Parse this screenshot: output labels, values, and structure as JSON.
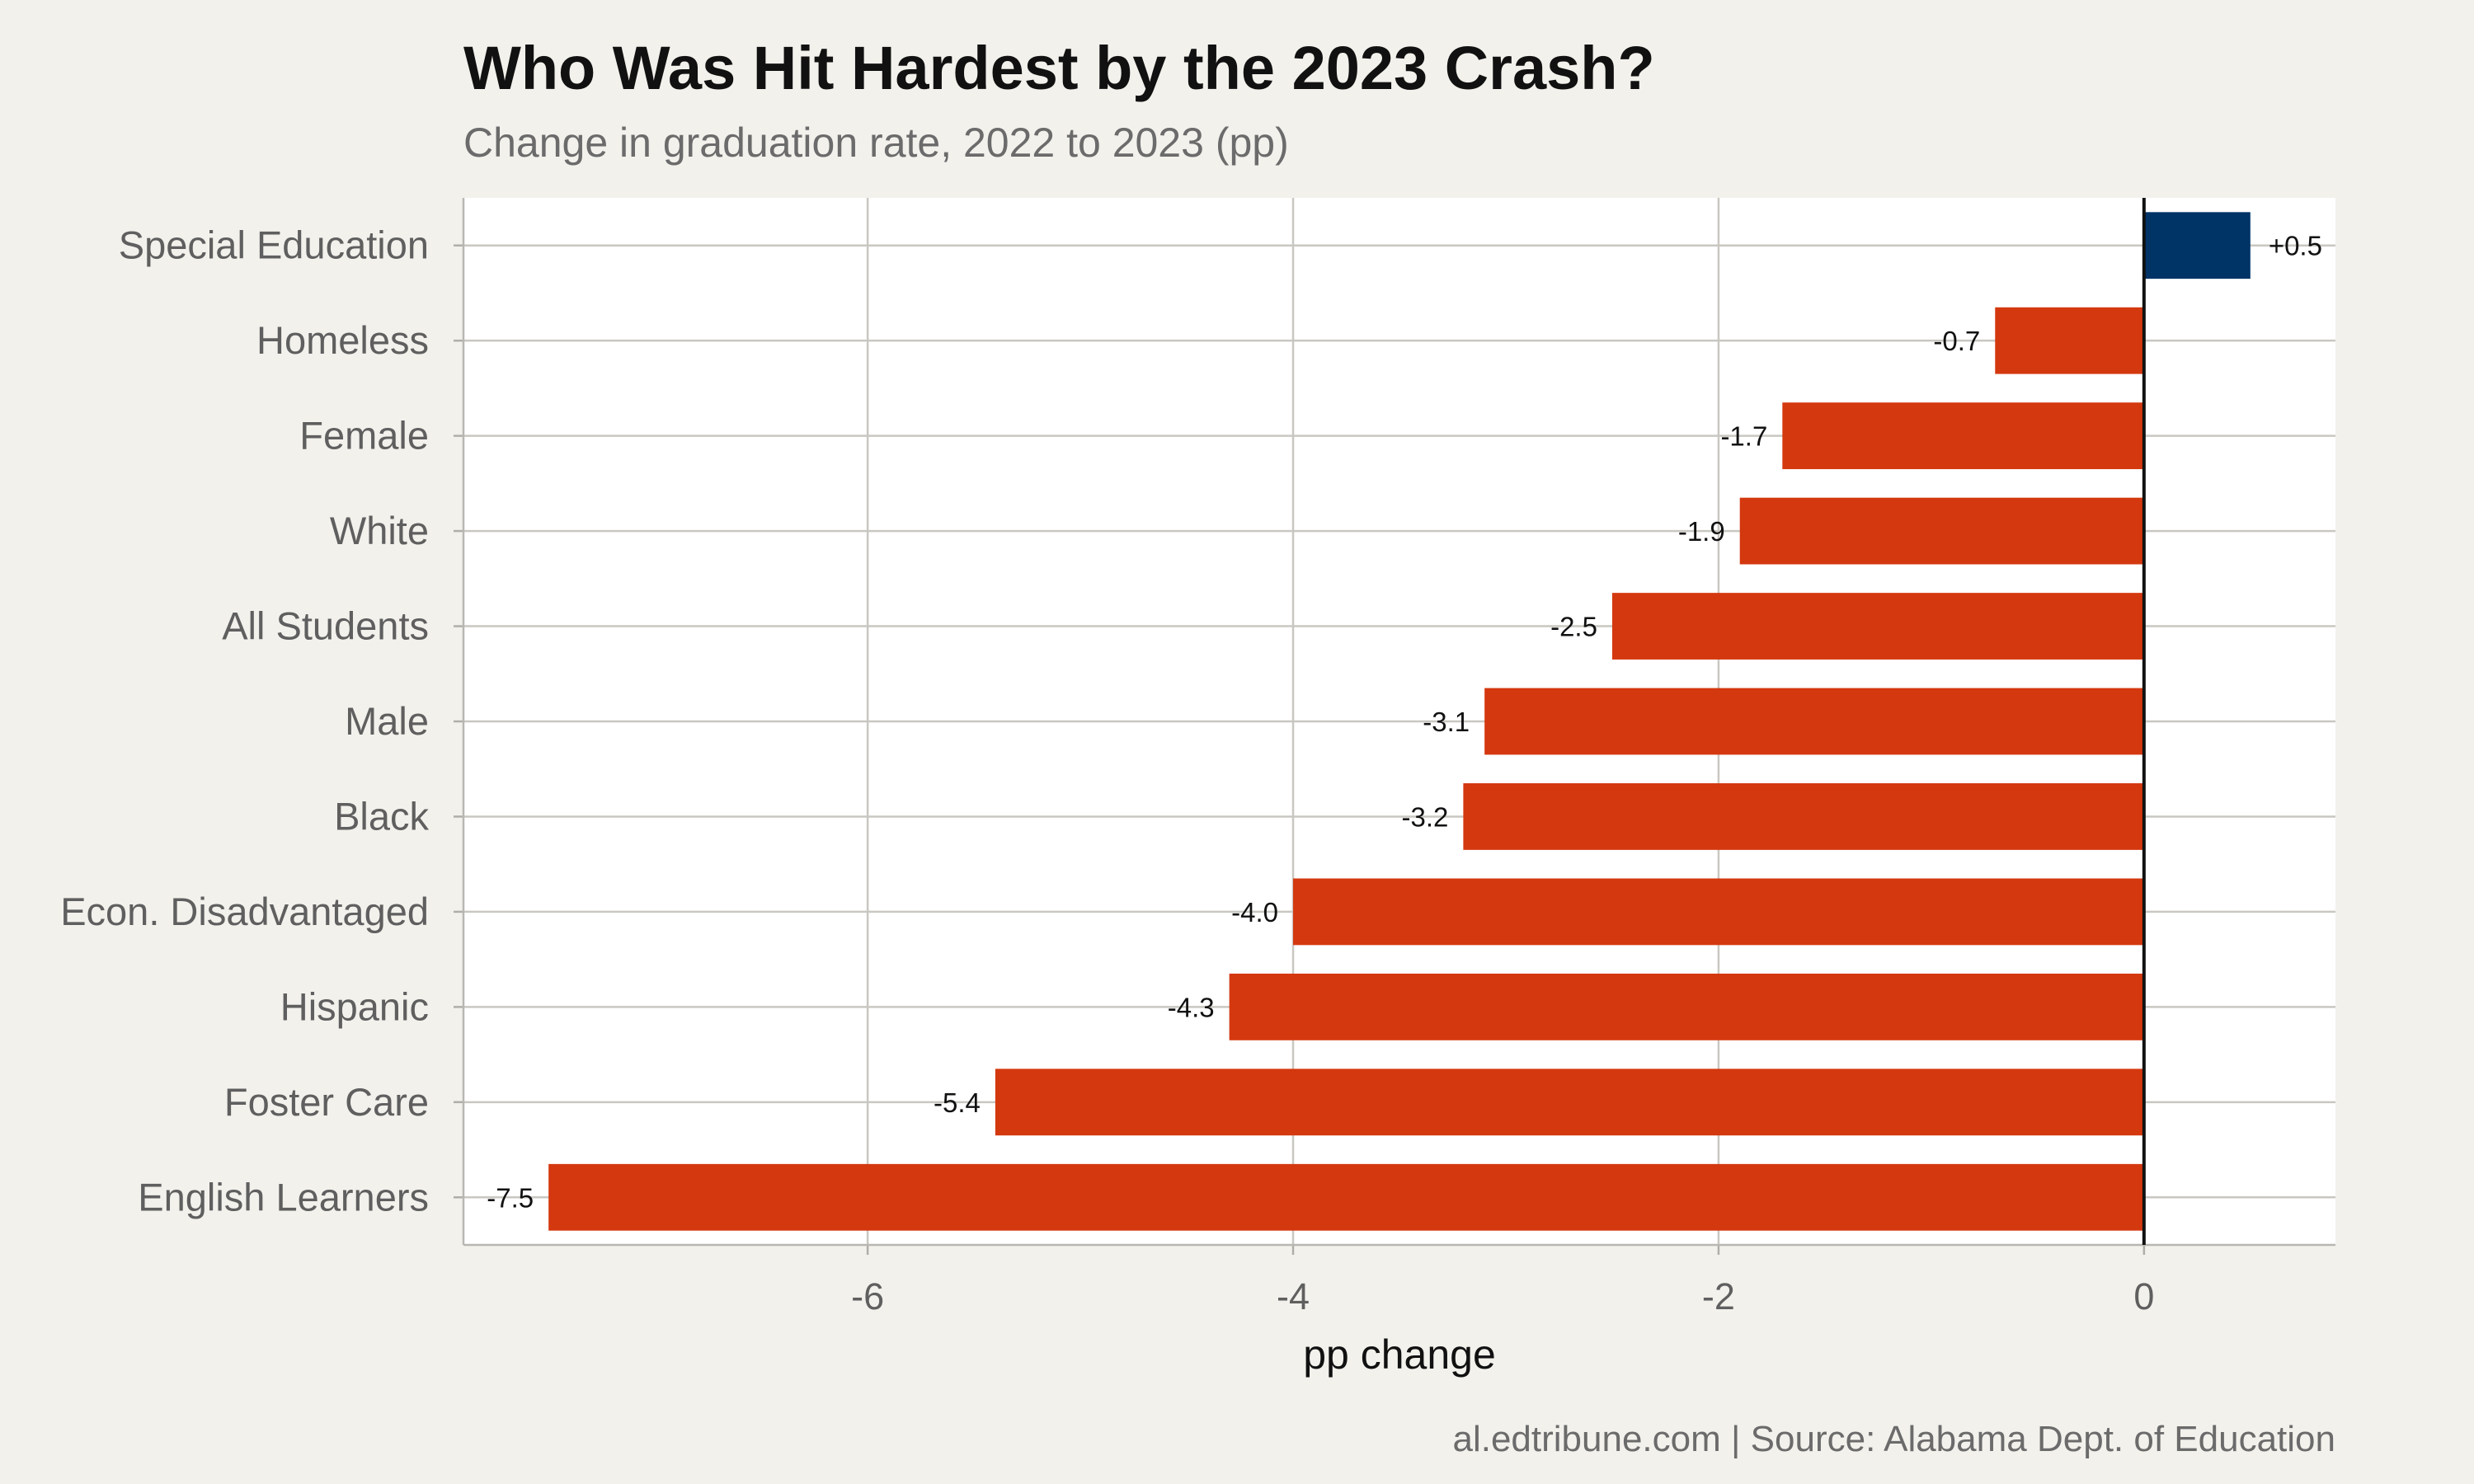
{
  "chart_data": {
    "type": "bar",
    "orientation": "horizontal",
    "title": "Who Was Hit Hardest by the 2023 Crash?",
    "subtitle": "Change in graduation rate, 2022 to 2023 (pp)",
    "xlabel": "pp change",
    "ylabel": "",
    "caption": "al.edtribune.com | Source: Alabama Dept. of Education",
    "categories": [
      "Special Education",
      "Homeless",
      "Female",
      "White",
      "All Students",
      "Male",
      "Black",
      "Econ. Disadvantaged",
      "Hispanic",
      "Foster Care",
      "English Learners"
    ],
    "values": [
      0.5,
      -0.7,
      -1.7,
      -1.9,
      -2.5,
      -3.1,
      -3.2,
      -4.0,
      -4.3,
      -5.4,
      -7.5
    ],
    "value_labels": [
      "+0.5",
      "-0.7",
      "-1.7",
      "-1.9",
      "-2.5",
      "-3.1",
      "-3.2",
      "-4.0",
      "-4.3",
      "-5.4",
      "-7.5"
    ],
    "xlim": [
      -7.9,
      0.9
    ],
    "xticks": [
      -6,
      -4,
      -2,
      0
    ],
    "xtick_labels": [
      "-6",
      "-4",
      "-2",
      "0"
    ],
    "grid": true,
    "reference_line": 0,
    "colors": {
      "positive": "#003366",
      "negative": "#d4380f",
      "background": "#f3f1ec",
      "panel": "#ffffff"
    }
  }
}
